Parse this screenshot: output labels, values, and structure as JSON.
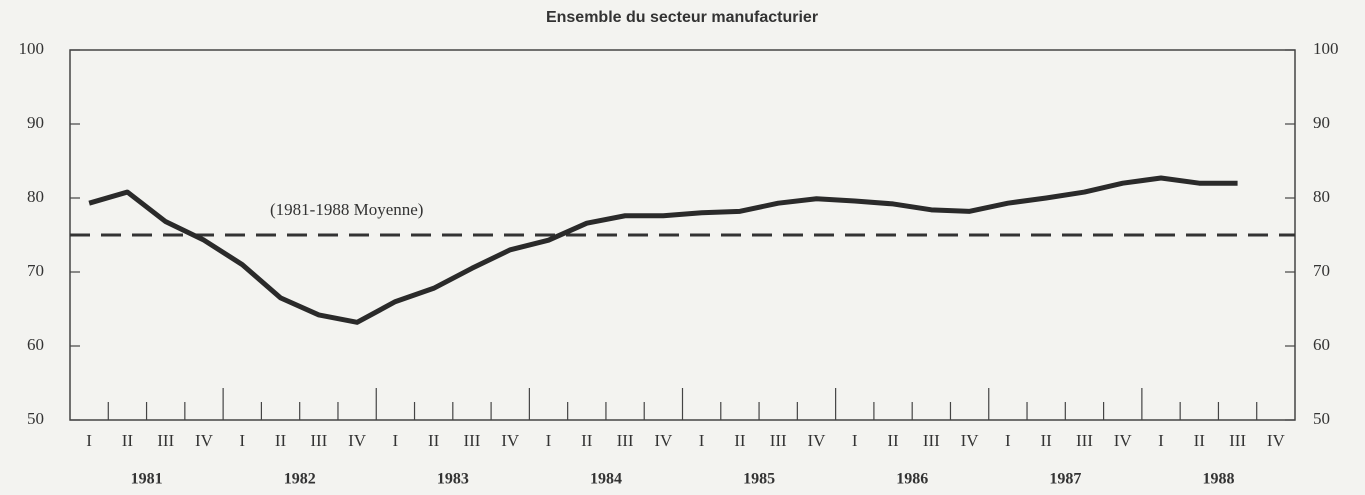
{
  "chart_data": {
    "type": "line",
    "title": "Ensemble du secteur manufacturier",
    "categories": [
      "I",
      "II",
      "III",
      "IV",
      "I",
      "II",
      "III",
      "IV",
      "I",
      "II",
      "III",
      "IV",
      "I",
      "II",
      "III",
      "IV",
      "I",
      "II",
      "III",
      "IV",
      "I",
      "II",
      "III",
      "IV",
      "I",
      "II",
      "III",
      "IV",
      "I",
      "II",
      "III",
      "IV"
    ],
    "years": [
      "1981",
      "1982",
      "1983",
      "1984",
      "1985",
      "1986",
      "1987",
      "1988"
    ],
    "series": [
      {
        "color": "#2a2a2a",
        "values": [
          79.3,
          80.8,
          76.8,
          74.3,
          71,
          66.5,
          64.2,
          63.2,
          66,
          67.8,
          70.5,
          73,
          74.3,
          76.6,
          77.6,
          77.6,
          78,
          78.2,
          79.3,
          79.9,
          79.6,
          79.2,
          78.4,
          78.2,
          79.3,
          80,
          80.8,
          82,
          82.7,
          82,
          82,
          null
        ]
      }
    ],
    "reference_line": {
      "value": 75,
      "label": "(1981-1988 Moyenne)",
      "color": "#333333"
    },
    "ylim": [
      50,
      100
    ],
    "yticks": [
      50,
      60,
      70,
      80,
      90,
      100
    ],
    "y2lim": [
      50,
      100
    ],
    "y2ticks": [
      50,
      60,
      70,
      80,
      90,
      100
    ],
    "grid": false
  }
}
